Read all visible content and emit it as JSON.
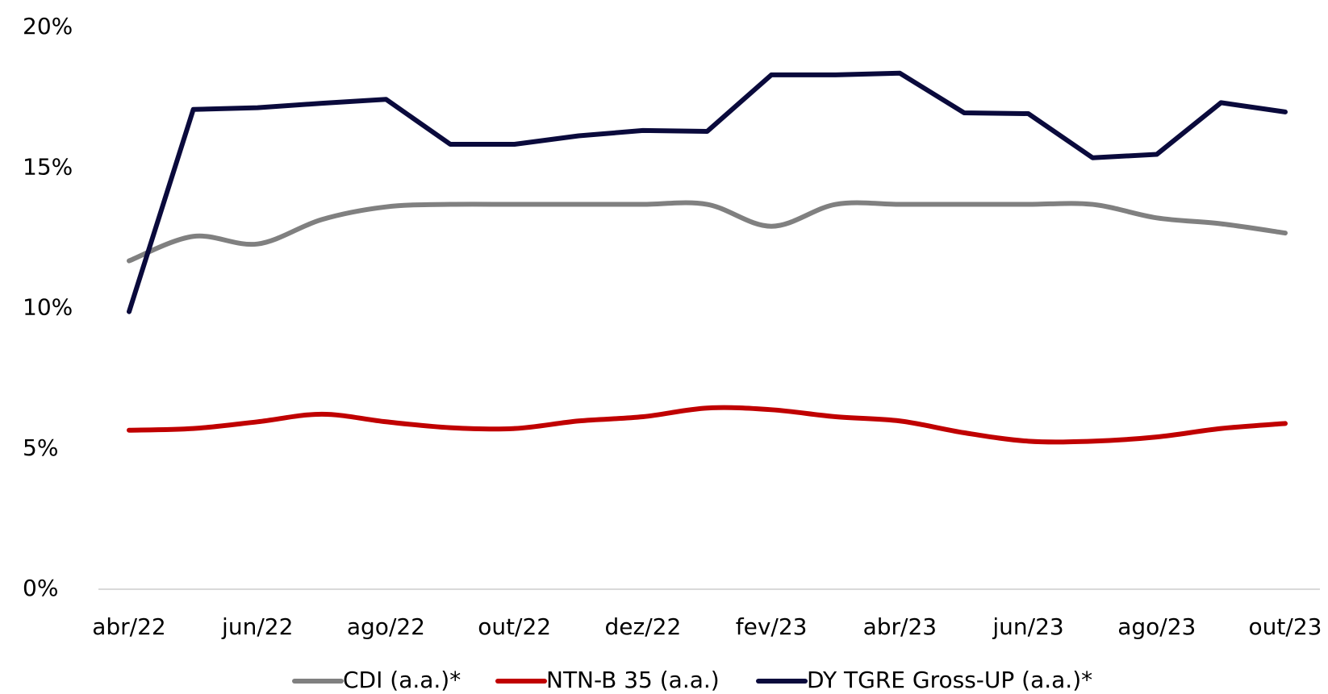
{
  "chart_data": {
    "type": "line",
    "categories": [
      "abr/22",
      null,
      "jun/22",
      null,
      "ago/22",
      null,
      "out/22",
      null,
      "dez/22",
      null,
      "fev/23",
      null,
      "abr/23",
      null,
      "jun/23",
      null,
      "ago/23",
      null,
      "out/23"
    ],
    "series": [
      {
        "name": "CDI (a.a.)*",
        "color": "#808080",
        "smooth": true,
        "values": [
          11.69,
          12.56,
          12.29,
          13.16,
          13.61,
          13.7,
          13.7,
          13.7,
          13.7,
          13.7,
          12.92,
          13.7,
          13.7,
          13.7,
          13.7,
          13.7,
          13.22,
          13.01,
          12.68
        ]
      },
      {
        "name": "NTN-B 35 (a.a.)",
        "color": "#c00000",
        "smooth": true,
        "values": [
          5.66,
          5.72,
          5.96,
          6.23,
          5.96,
          5.75,
          5.72,
          5.99,
          6.14,
          6.45,
          6.39,
          6.14,
          5.99,
          5.57,
          5.27,
          5.27,
          5.42,
          5.72,
          5.9
        ]
      },
      {
        "name": "DY TGRE Gross-UP (a.a.)*",
        "color": "#0a0a3c",
        "smooth": false,
        "values": [
          9.88,
          17.08,
          17.14,
          17.3,
          17.44,
          15.84,
          15.84,
          16.14,
          16.33,
          16.3,
          18.31,
          18.31,
          18.37,
          16.96,
          16.93,
          15.36,
          15.48,
          17.32,
          16.99
        ]
      }
    ],
    "ylim": [
      0,
      20
    ],
    "yticks": [
      {
        "value": 0,
        "label": "0%"
      },
      {
        "value": 5,
        "label": "5%"
      },
      {
        "value": 10,
        "label": "10%"
      },
      {
        "value": 15,
        "label": "15%"
      },
      {
        "value": 20,
        "label": "20%"
      }
    ],
    "grid": false,
    "legend": "bottom"
  }
}
